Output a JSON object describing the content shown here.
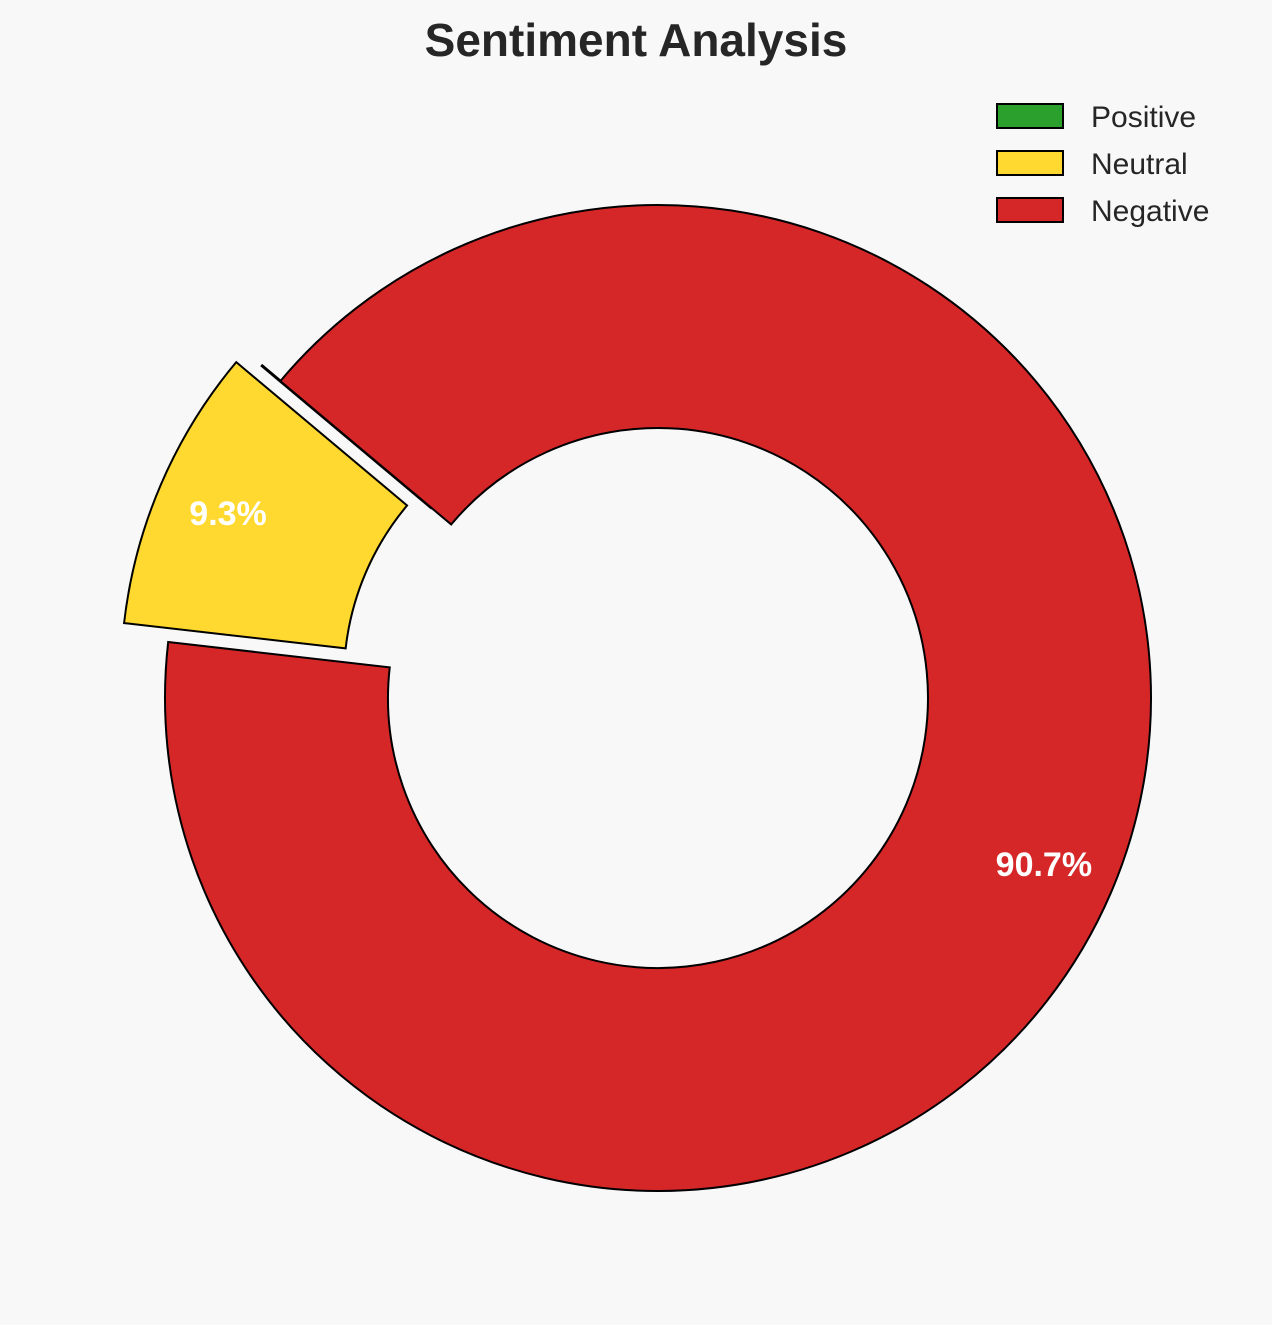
{
  "chart_data": {
    "type": "pie",
    "variant": "donut",
    "title": "Sentiment Analysis",
    "categories": [
      "Positive",
      "Neutral",
      "Negative"
    ],
    "values": [
      0.0,
      9.3,
      90.7
    ],
    "labels": [
      "",
      "9.3%",
      "90.7%"
    ],
    "colors": [
      "#2ca02c",
      "#ffd92f",
      "#d62728"
    ],
    "start_angle_deg": 140,
    "exploded": [
      true,
      true,
      false
    ],
    "legend_placement": "top-right"
  }
}
